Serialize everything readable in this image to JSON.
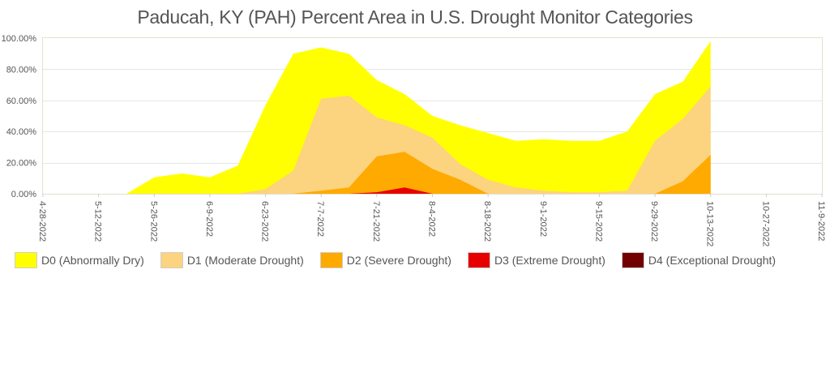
{
  "chart_data": {
    "type": "area",
    "stacked": false,
    "title": "Paducah, KY (PAH) Percent Area in U.S. Drought Monitor Categories",
    "xlabel": "",
    "ylabel": "",
    "ylim": [
      0,
      100
    ],
    "y_ticks": [
      "0.00%",
      "20.00%",
      "40.00%",
      "60.00%",
      "80.00%",
      "100.00%"
    ],
    "x_ticks": [
      "4-28-2022",
      "5-12-2022",
      "5-26-2022",
      "6-9-2022",
      "6-23-2022",
      "7-7-2022",
      "7-21-2022",
      "8-4-2022",
      "8-18-2022",
      "9-1-2022",
      "9-15-2022",
      "9-29-2022",
      "10-13-2022",
      "10-27-2022",
      "11-9-2022"
    ],
    "x_tick_weeks": [
      0,
      2,
      4,
      6,
      8,
      10,
      12,
      14,
      16,
      18,
      20,
      22,
      24,
      26,
      28
    ],
    "x_range": [
      0,
      28
    ],
    "legend_position": "bottom-left",
    "weeks": [
      0,
      1,
      2,
      3,
      4,
      5,
      6,
      7,
      8,
      9,
      10,
      11,
      12,
      13,
      14,
      15,
      16,
      17,
      18,
      19,
      20,
      21,
      22,
      23,
      24
    ],
    "series": [
      {
        "key": "D0",
        "name": "D0 (Abnormally Dry)",
        "color": "#ffff00",
        "values": [
          0,
          0,
          0,
          0,
          10.5,
          13,
          10.5,
          18,
          57,
          90,
          94,
          90,
          73,
          64,
          50,
          44,
          39,
          34,
          35,
          34,
          34,
          40,
          64,
          72,
          98
        ]
      },
      {
        "key": "D1",
        "name": "D1 (Moderate Drought)",
        "color": "#fcd37f",
        "values": [
          0,
          0,
          0,
          0,
          0,
          0,
          0,
          0,
          3,
          15,
          61,
          63,
          49,
          44,
          36,
          19,
          9,
          4,
          2,
          1,
          1,
          2,
          34,
          48,
          69
        ]
      },
      {
        "key": "D2",
        "name": "D2 (Severe Drought)",
        "color": "#ffaa00",
        "values": [
          0,
          0,
          0,
          0,
          0,
          0,
          0,
          0,
          0,
          0,
          2,
          4,
          24,
          27,
          16,
          9,
          0,
          0,
          0,
          0,
          0,
          0,
          0,
          8,
          25
        ]
      },
      {
        "key": "D3",
        "name": "D3 (Extreme Drought)",
        "color": "#e60000",
        "values": [
          0,
          0,
          0,
          0,
          0,
          0,
          0,
          0,
          0,
          0,
          0,
          0,
          1,
          4,
          0,
          0,
          0,
          0,
          0,
          0,
          0,
          0,
          0,
          0,
          0
        ]
      },
      {
        "key": "D4",
        "name": "D4 (Exceptional Drought)",
        "color": "#730000",
        "values": [
          0,
          0,
          0,
          0,
          0,
          0,
          0,
          0,
          0,
          0,
          0,
          0,
          0,
          0,
          0,
          0,
          0,
          0,
          0,
          0,
          0,
          0,
          0,
          0,
          0
        ]
      }
    ]
  }
}
